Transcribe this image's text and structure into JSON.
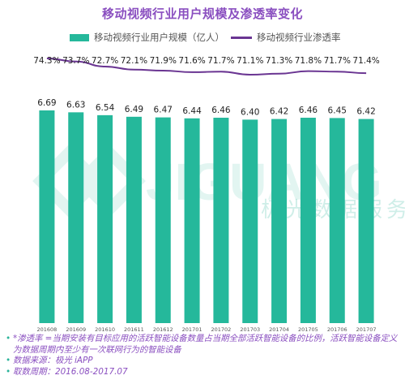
{
  "colors": {
    "bar": "#25b89b",
    "line": "#6a3592",
    "title": "#8a4fc0",
    "value_text": "#222222",
    "axis_text": "#555555"
  },
  "chart_data": {
    "type": "bar",
    "title": "移动视频行业用户规模及渗透率变化",
    "categories": [
      "201608",
      "201609",
      "201610",
      "201611",
      "201612",
      "201701",
      "201702",
      "201703",
      "201704",
      "201705",
      "201706",
      "201707"
    ],
    "series": [
      {
        "name": "移动视频行业用户规模（亿人）",
        "type": "bar",
        "values": [
          6.69,
          6.63,
          6.54,
          6.49,
          6.47,
          6.44,
          6.46,
          6.4,
          6.42,
          6.46,
          6.45,
          6.42
        ],
        "labels": [
          "6.69",
          "6.63",
          "6.54",
          "6.49",
          "6.47",
          "6.44",
          "6.46",
          "6.40",
          "6.42",
          "6.46",
          "6.45",
          "6.42"
        ]
      },
      {
        "name": "移动视频行业渗透率",
        "type": "line",
        "values": [
          74.3,
          73.7,
          72.7,
          72.1,
          71.9,
          71.6,
          71.7,
          71.1,
          71.3,
          71.8,
          71.7,
          71.4
        ],
        "labels": [
          "74.3%",
          "73.7%",
          "72.7%",
          "72.1%",
          "71.9%",
          "71.6%",
          "71.7%",
          "71.1%",
          "71.3%",
          "71.8%",
          "71.7%",
          "71.4%"
        ]
      }
    ],
    "xlabel": "",
    "ylabel": "",
    "legend": "top-center",
    "grid": false
  },
  "watermark": {
    "logo_text": "JIGUANG",
    "text": "极光数据服务"
  },
  "footer": {
    "notes": [
      "*渗透率 =当期安装有目标应用的活跃智能设备数量占当期全部活跃智能设备的比例，活跃智能设备定义为数据周期内至少有一次联网行为的智能设备",
      "数据来源：极光 iAPP",
      "取数周期：2016.08-2017.07"
    ]
  }
}
